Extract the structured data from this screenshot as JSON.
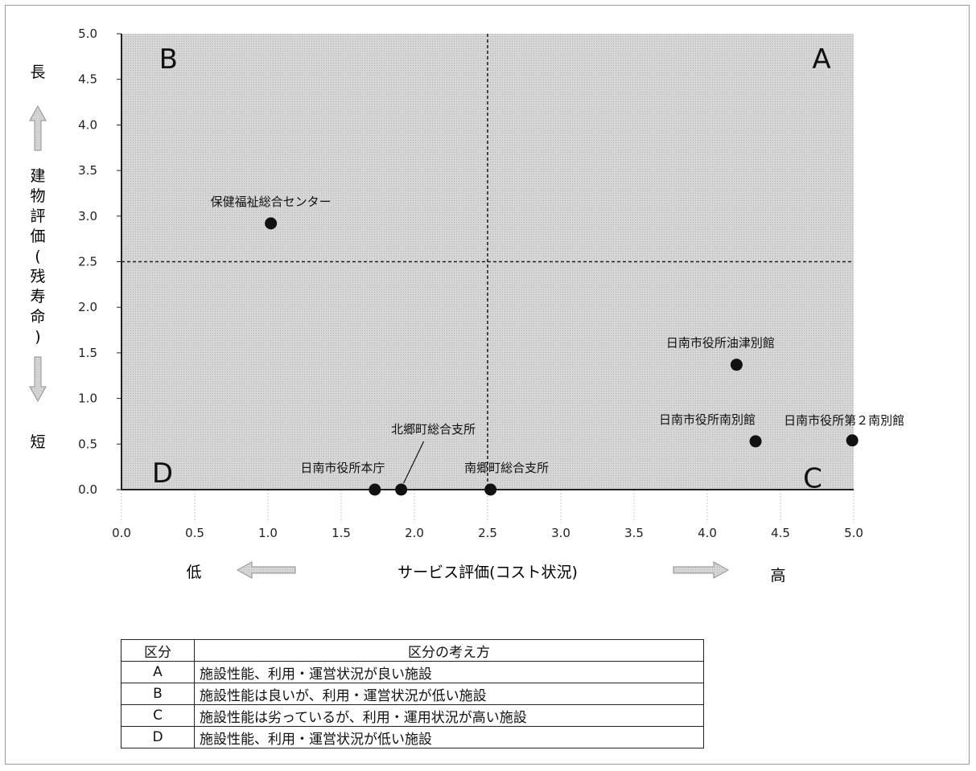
{
  "chart_data": {
    "type": "scatter",
    "title": "",
    "xlabel": "サービス評価(コスト状況)",
    "ylabel": "建物評価(残寿命)",
    "x_low_label": "低",
    "x_high_label": "高",
    "y_high_label": "長",
    "y_low_label": "短",
    "xlim": [
      0,
      5
    ],
    "ylim": [
      0,
      5
    ],
    "xticks": [
      "0.0",
      "0.5",
      "1.0",
      "1.5",
      "2.0",
      "2.5",
      "3.0",
      "3.5",
      "4.0",
      "4.5",
      "5.0"
    ],
    "yticks": [
      "0.0",
      "0.5",
      "1.0",
      "1.5",
      "2.0",
      "2.5",
      "3.0",
      "3.5",
      "4.0",
      "4.5",
      "5.0"
    ],
    "x_divider": 2.5,
    "y_divider": 2.5,
    "quadrants": [
      "A",
      "B",
      "C",
      "D"
    ],
    "points": [
      {
        "label": "保健福祉総合センター",
        "x": 1.02,
        "y": 2.92
      },
      {
        "label": "日南市役所油津別館",
        "x": 4.2,
        "y": 1.37
      },
      {
        "label": "日南市役所南別館",
        "x": 4.33,
        "y": 0.53
      },
      {
        "label": "日南市役所第２南別館",
        "x": 4.99,
        "y": 0.54
      },
      {
        "label": "北郷町総合支所",
        "x": 1.91,
        "y": 0.0
      },
      {
        "label": "日南市役所本庁",
        "x": 1.73,
        "y": 0.0
      },
      {
        "label": "南郷町総合支所",
        "x": 2.52,
        "y": 0.0
      }
    ],
    "colors": {
      "background": "#d8d8d8",
      "point": "#111111",
      "arrow": "#b8b8b8"
    }
  },
  "legend_table": {
    "headers": [
      "区分",
      "区分の考え方"
    ],
    "rows": [
      {
        "key": "A",
        "desc": "施設性能、利用・運営状況が良い施設"
      },
      {
        "key": "B",
        "desc": "施設性能は良いが、利用・運営状況が低い施設"
      },
      {
        "key": "C",
        "desc": "施設性能は劣っているが、利用・運用状況が高い施設"
      },
      {
        "key": "D",
        "desc": "施設性能、利用・運営状況が低い施設"
      }
    ]
  }
}
